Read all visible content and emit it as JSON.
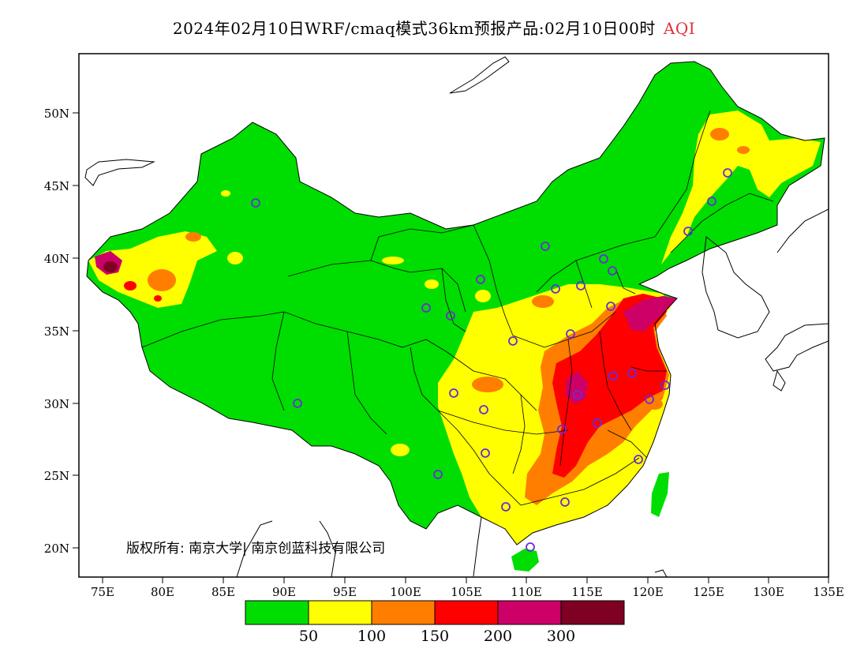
{
  "title": {
    "main": "2024年02月10日WRF/cmaq模式36km预报产品:02月10日00时",
    "variable": "AQI"
  },
  "axes": {
    "lat_labels": [
      "50N",
      "45N",
      "40N",
      "35N",
      "30N",
      "25N",
      "20N"
    ],
    "lon_labels": [
      "75E",
      "80E",
      "85E",
      "90E",
      "95E",
      "100E",
      "105E",
      "110E",
      "115E",
      "120E",
      "125E",
      "130E",
      "135E"
    ]
  },
  "copyright": "版权所有: 南京大学| 南京创蓝科技有限公司",
  "legend": {
    "colors": [
      "#00dd00",
      "#ffff00",
      "#ff7e00",
      "#ff0000",
      "#cc0066",
      "#7e0023"
    ],
    "labels": [
      "50",
      "100",
      "150",
      "200",
      "300"
    ]
  }
}
